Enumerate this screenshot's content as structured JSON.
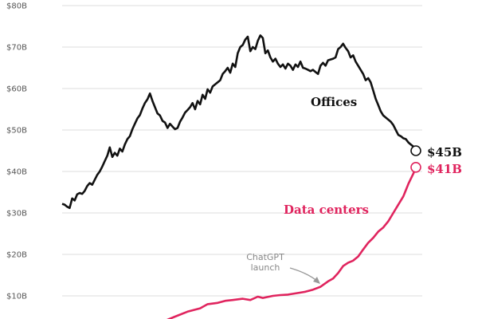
{
  "chart_data": {
    "type": "line",
    "ylim": [
      0,
      80
    ],
    "yticks": [
      {
        "value": 10,
        "label": "$10B"
      },
      {
        "value": 20,
        "label": "$20B"
      },
      {
        "value": 30,
        "label": "$30B"
      },
      {
        "value": 40,
        "label": "$40B"
      },
      {
        "value": 50,
        "label": "$50B"
      },
      {
        "value": 60,
        "label": "$60B"
      },
      {
        "value": 70,
        "label": "$70B"
      },
      {
        "value": 80,
        "label": "$80B"
      }
    ],
    "grid": true,
    "series": [
      {
        "name": "Offices",
        "color": "#111111",
        "end_label": "$45B",
        "points": [
          [
            0,
            32.2
          ],
          [
            1,
            32.0
          ],
          [
            2,
            31.5
          ],
          [
            3,
            31.2
          ],
          [
            4,
            33.5
          ],
          [
            5,
            33.0
          ],
          [
            6,
            34.5
          ],
          [
            7,
            34.8
          ],
          [
            8,
            34.6
          ],
          [
            9,
            35.3
          ],
          [
            10,
            36.5
          ],
          [
            11,
            37.2
          ],
          [
            12,
            36.8
          ],
          [
            13,
            38.0
          ],
          [
            14,
            39.2
          ],
          [
            15,
            40.0
          ],
          [
            16,
            41.2
          ],
          [
            17,
            42.5
          ],
          [
            18,
            43.8
          ],
          [
            19,
            45.8
          ],
          [
            20,
            43.5
          ],
          [
            21,
            44.5
          ],
          [
            22,
            43.8
          ],
          [
            23,
            45.5
          ],
          [
            24,
            44.8
          ],
          [
            25,
            46.5
          ],
          [
            26,
            47.8
          ],
          [
            27,
            48.5
          ],
          [
            28,
            50.2
          ],
          [
            29,
            51.5
          ],
          [
            30,
            52.8
          ],
          [
            31,
            53.6
          ],
          [
            32,
            55.2
          ],
          [
            33,
            56.5
          ],
          [
            34,
            57.4
          ],
          [
            35,
            58.8
          ],
          [
            36,
            57.0
          ],
          [
            37,
            55.5
          ],
          [
            38,
            54.0
          ],
          [
            39,
            53.5
          ],
          [
            40,
            52.2
          ],
          [
            41,
            51.8
          ],
          [
            42,
            50.5
          ],
          [
            43,
            51.5
          ],
          [
            44,
            50.8
          ],
          [
            45,
            50.2
          ],
          [
            46,
            50.5
          ],
          [
            47,
            52.0
          ],
          [
            48,
            53.0
          ],
          [
            49,
            54.2
          ],
          [
            50,
            54.8
          ],
          [
            51,
            55.5
          ],
          [
            52,
            56.5
          ],
          [
            53,
            55.0
          ],
          [
            54,
            57.0
          ],
          [
            55,
            56.2
          ],
          [
            56,
            58.5
          ],
          [
            57,
            57.5
          ],
          [
            58,
            59.8
          ],
          [
            59,
            59.0
          ],
          [
            60,
            60.5
          ],
          [
            61,
            61.0
          ],
          [
            62,
            61.5
          ],
          [
            63,
            62.0
          ],
          [
            64,
            63.5
          ],
          [
            65,
            64.2
          ],
          [
            66,
            65.0
          ],
          [
            67,
            63.8
          ],
          [
            68,
            66.0
          ],
          [
            69,
            65.2
          ],
          [
            70,
            68.5
          ],
          [
            71,
            70.0
          ],
          [
            72,
            70.5
          ],
          [
            73,
            71.8
          ],
          [
            74,
            72.5
          ],
          [
            75,
            69.0
          ],
          [
            76,
            70.0
          ],
          [
            77,
            69.5
          ],
          [
            78,
            71.5
          ],
          [
            79,
            72.8
          ],
          [
            80,
            72.2
          ],
          [
            81,
            68.5
          ],
          [
            82,
            69.2
          ],
          [
            83,
            67.5
          ],
          [
            84,
            66.5
          ],
          [
            85,
            67.2
          ],
          [
            86,
            66.0
          ],
          [
            87,
            65.2
          ],
          [
            88,
            65.8
          ],
          [
            89,
            64.8
          ],
          [
            90,
            66.0
          ],
          [
            91,
            65.5
          ],
          [
            92,
            64.5
          ],
          [
            93,
            65.8
          ],
          [
            94,
            65.2
          ],
          [
            95,
            66.5
          ],
          [
            96,
            65.0
          ],
          [
            97,
            64.8
          ],
          [
            98,
            64.5
          ],
          [
            99,
            64.2
          ],
          [
            100,
            64.5
          ],
          [
            101,
            64.0
          ],
          [
            102,
            63.5
          ],
          [
            103,
            65.5
          ],
          [
            104,
            66.2
          ],
          [
            105,
            65.5
          ],
          [
            106,
            66.8
          ],
          [
            107,
            67.0
          ],
          [
            108,
            67.2
          ],
          [
            109,
            67.5
          ],
          [
            110,
            69.5
          ],
          [
            111,
            70.0
          ],
          [
            112,
            70.8
          ],
          [
            113,
            69.8
          ],
          [
            114,
            69.0
          ],
          [
            115,
            67.5
          ],
          [
            116,
            68.0
          ],
          [
            117,
            66.5
          ],
          [
            118,
            65.5
          ],
          [
            119,
            64.5
          ],
          [
            120,
            63.5
          ],
          [
            121,
            62.0
          ],
          [
            122,
            62.5
          ],
          [
            123,
            61.5
          ],
          [
            124,
            59.5
          ],
          [
            125,
            57.5
          ],
          [
            126,
            56.0
          ],
          [
            127,
            54.5
          ],
          [
            128,
            53.5
          ],
          [
            129,
            53.0
          ],
          [
            130,
            52.5
          ],
          [
            131,
            52.0
          ],
          [
            132,
            51.2
          ],
          [
            133,
            50.0
          ],
          [
            134,
            48.8
          ],
          [
            135,
            48.5
          ],
          [
            136,
            48.0
          ],
          [
            137,
            47.8
          ],
          [
            138,
            47.0
          ],
          [
            139,
            46.5
          ],
          [
            140,
            46.0
          ],
          [
            141,
            45.0
          ]
        ]
      },
      {
        "name": "Data centers",
        "color": "#e0245e",
        "end_label": "$41B",
        "points": [
          [
            39,
            3.5
          ],
          [
            45,
            5.0
          ],
          [
            50,
            6.2
          ],
          [
            55,
            7.0
          ],
          [
            58,
            8.0
          ],
          [
            62,
            8.3
          ],
          [
            65,
            8.8
          ],
          [
            68,
            9.0
          ],
          [
            72,
            9.3
          ],
          [
            75,
            9.0
          ],
          [
            78,
            9.8
          ],
          [
            80,
            9.5
          ],
          [
            84,
            10.0
          ],
          [
            87,
            10.2
          ],
          [
            90,
            10.3
          ],
          [
            94,
            10.7
          ],
          [
            97,
            11.0
          ],
          [
            100,
            11.5
          ],
          [
            103,
            12.2
          ],
          [
            106,
            13.5
          ],
          [
            108,
            14.2
          ],
          [
            110,
            15.5
          ],
          [
            112,
            17.2
          ],
          [
            114,
            18.0
          ],
          [
            116,
            18.5
          ],
          [
            118,
            19.5
          ],
          [
            120,
            21.2
          ],
          [
            122,
            22.8
          ],
          [
            124,
            24.0
          ],
          [
            126,
            25.5
          ],
          [
            128,
            26.5
          ],
          [
            130,
            28.0
          ],
          [
            132,
            30.0
          ],
          [
            134,
            32.0
          ],
          [
            136,
            34.0
          ],
          [
            138,
            37.0
          ],
          [
            140,
            39.5
          ],
          [
            141,
            41.0
          ]
        ]
      }
    ],
    "annotations": [
      {
        "lines": [
          "ChatGPT",
          "launch"
        ]
      }
    ]
  }
}
